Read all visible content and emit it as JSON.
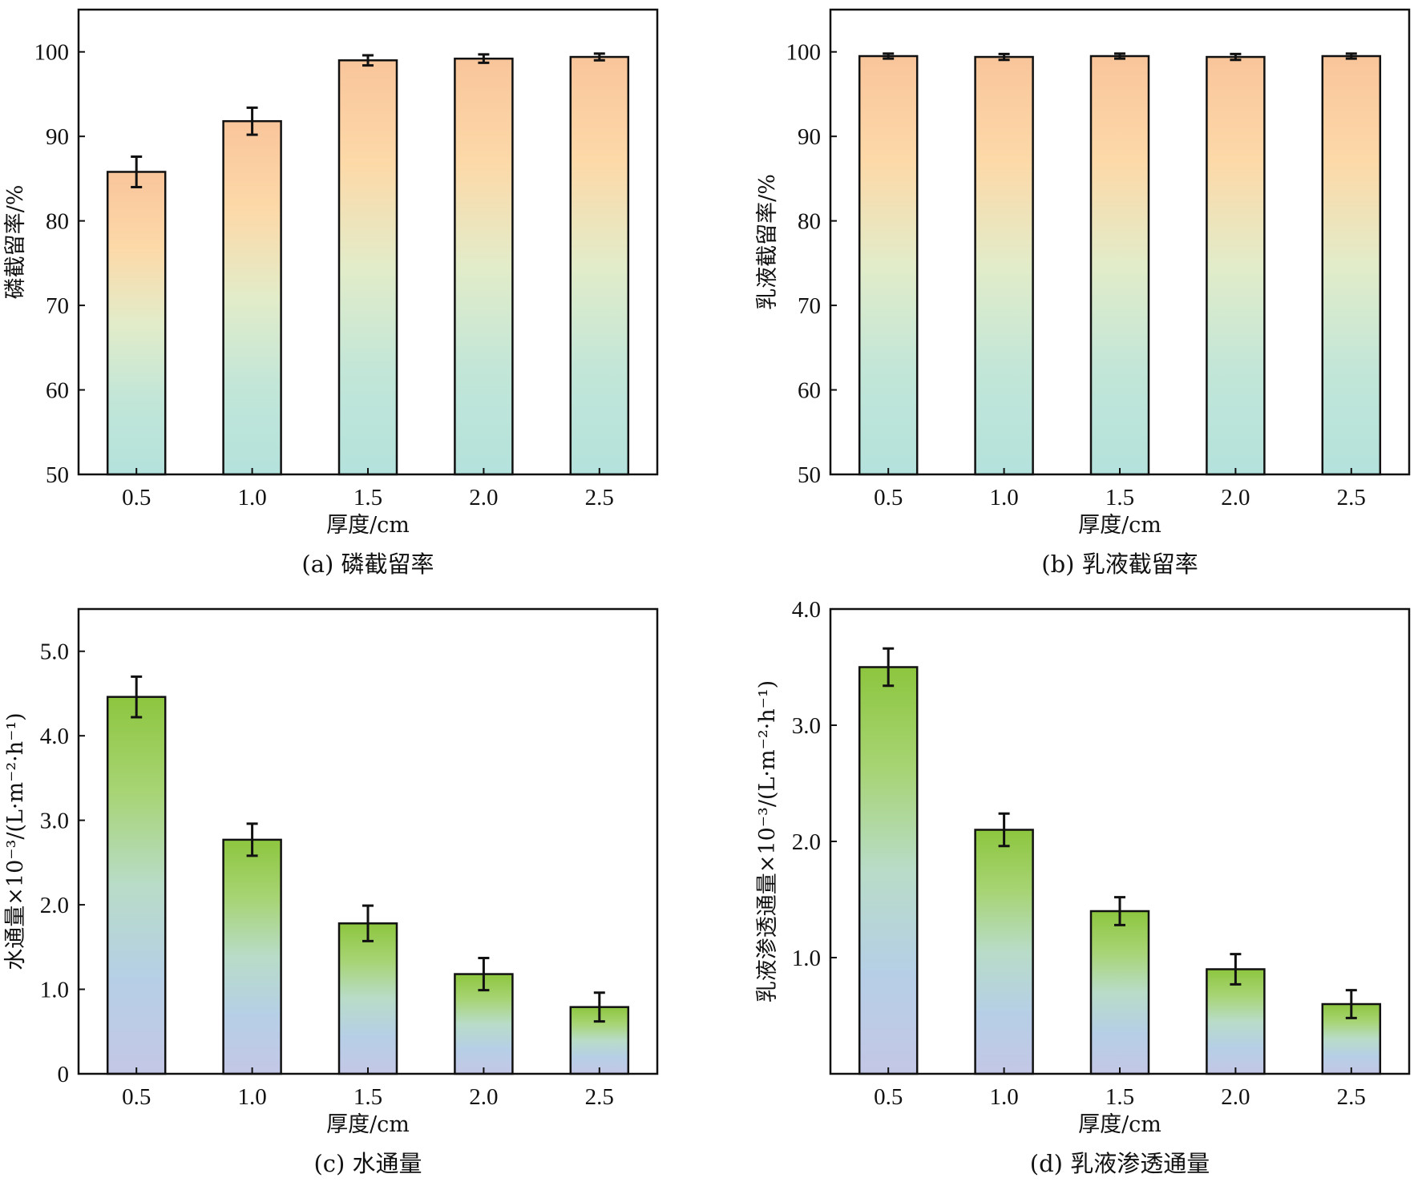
{
  "chart_data": [
    {
      "id": "a",
      "type": "bar",
      "caption": "(a) 磷截留率",
      "xlabel": "厚度/cm",
      "ylabel": "磷截留率/%",
      "categories": [
        "0.5",
        "1.0",
        "1.5",
        "2.0",
        "2.5"
      ],
      "values": [
        85.8,
        91.8,
        99.0,
        99.2,
        99.4
      ],
      "errors": [
        1.8,
        1.6,
        0.6,
        0.5,
        0.4
      ],
      "ylim": [
        50,
        105
      ],
      "yticks": [
        50,
        60,
        70,
        80,
        90,
        100
      ],
      "ytick_labels": [
        "50",
        "60",
        "70",
        "80",
        "90",
        "100"
      ],
      "gradient": [
        "#f9c59b",
        "#fdd9a8",
        "#e2ecc9",
        "#c2e6d8",
        "#b4e2dc"
      ]
    },
    {
      "id": "b",
      "type": "bar",
      "caption": "(b) 乳液截留率",
      "xlabel": "厚度/cm",
      "ylabel": "乳液截留率/%",
      "categories": [
        "0.5",
        "1.0",
        "1.5",
        "2.0",
        "2.5"
      ],
      "values": [
        99.5,
        99.4,
        99.5,
        99.4,
        99.5
      ],
      "errors": [
        0.3,
        0.35,
        0.3,
        0.35,
        0.3
      ],
      "ylim": [
        50,
        105
      ],
      "yticks": [
        50,
        60,
        70,
        80,
        90,
        100
      ],
      "ytick_labels": [
        "50",
        "60",
        "70",
        "80",
        "90",
        "100"
      ],
      "gradient": [
        "#f9c59b",
        "#fdd9a8",
        "#e2ecc9",
        "#c2e6d8",
        "#b4e2dc"
      ]
    },
    {
      "id": "c",
      "type": "bar",
      "caption": "(c) 水通量",
      "xlabel": "厚度/cm",
      "ylabel": "水通量×10⁻³/(L·m⁻²·h⁻¹)",
      "categories": [
        "0.5",
        "1.0",
        "1.5",
        "2.0",
        "2.5"
      ],
      "values": [
        4.46,
        2.77,
        1.78,
        1.18,
        0.79
      ],
      "errors": [
        0.24,
        0.19,
        0.21,
        0.19,
        0.17
      ],
      "ylim": [
        0,
        5.5
      ],
      "yticks": [
        0,
        1,
        2,
        3,
        4,
        5
      ],
      "ytick_labels": [
        "0",
        "1.0",
        "2.0",
        "3.0",
        "4.0",
        "5.0"
      ],
      "gradient": [
        "#8dc63f",
        "#a7d474",
        "#b8dcc8",
        "#b6cfe6",
        "#c3c7e6"
      ]
    },
    {
      "id": "d",
      "type": "bar",
      "caption": "(d) 乳液渗透通量",
      "xlabel": "厚度/cm",
      "ylabel": "乳液渗透通量×10⁻³/(L·m⁻²·h⁻¹)",
      "categories": [
        "0.5",
        "1.0",
        "1.5",
        "2.0",
        "2.5"
      ],
      "values": [
        3.5,
        2.1,
        1.4,
        0.9,
        0.6
      ],
      "errors": [
        0.16,
        0.14,
        0.12,
        0.13,
        0.12
      ],
      "ylim": [
        0,
        4.0
      ],
      "yticks": [
        1,
        2,
        3,
        4
      ],
      "ytick_labels": [
        "1.0",
        "2.0",
        "3.0",
        "4.0"
      ],
      "gradient": [
        "#8dc63f",
        "#a7d474",
        "#b8dcc8",
        "#b6cfe6",
        "#c3c7e6"
      ]
    }
  ]
}
